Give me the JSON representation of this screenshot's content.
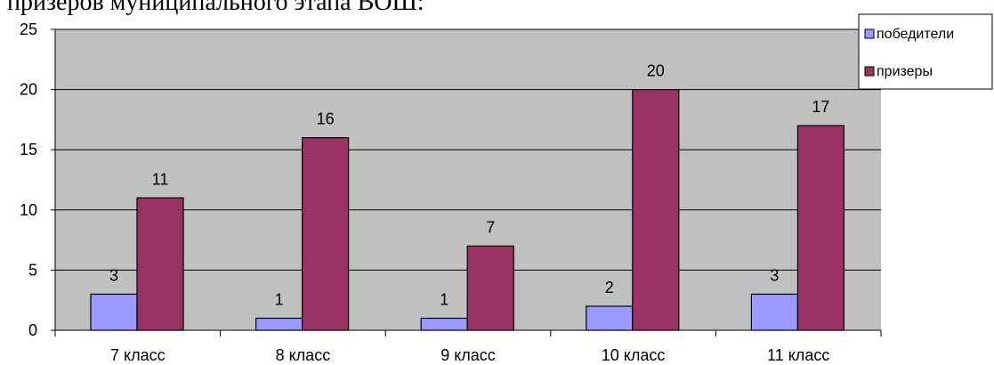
{
  "header": {
    "text": "призеров муниципального этапа ВОШ:"
  },
  "chart_data": {
    "type": "bar",
    "categories": [
      "7 класс",
      "8 класс",
      "9 класс",
      "10 класс",
      "11 класс"
    ],
    "series": [
      {
        "name": "победители",
        "values": [
          3,
          1,
          1,
          2,
          3
        ],
        "color": "#9999ff"
      },
      {
        "name": "призеры",
        "values": [
          11,
          16,
          7,
          20,
          17
        ],
        "color": "#993366"
      }
    ],
    "ylim": [
      0,
      25
    ],
    "yticks": [
      0,
      5,
      10,
      15,
      20,
      25
    ],
    "grid": true,
    "plot_background": "#c0c0c0",
    "legend_position": "top-right",
    "data_labels": true
  }
}
